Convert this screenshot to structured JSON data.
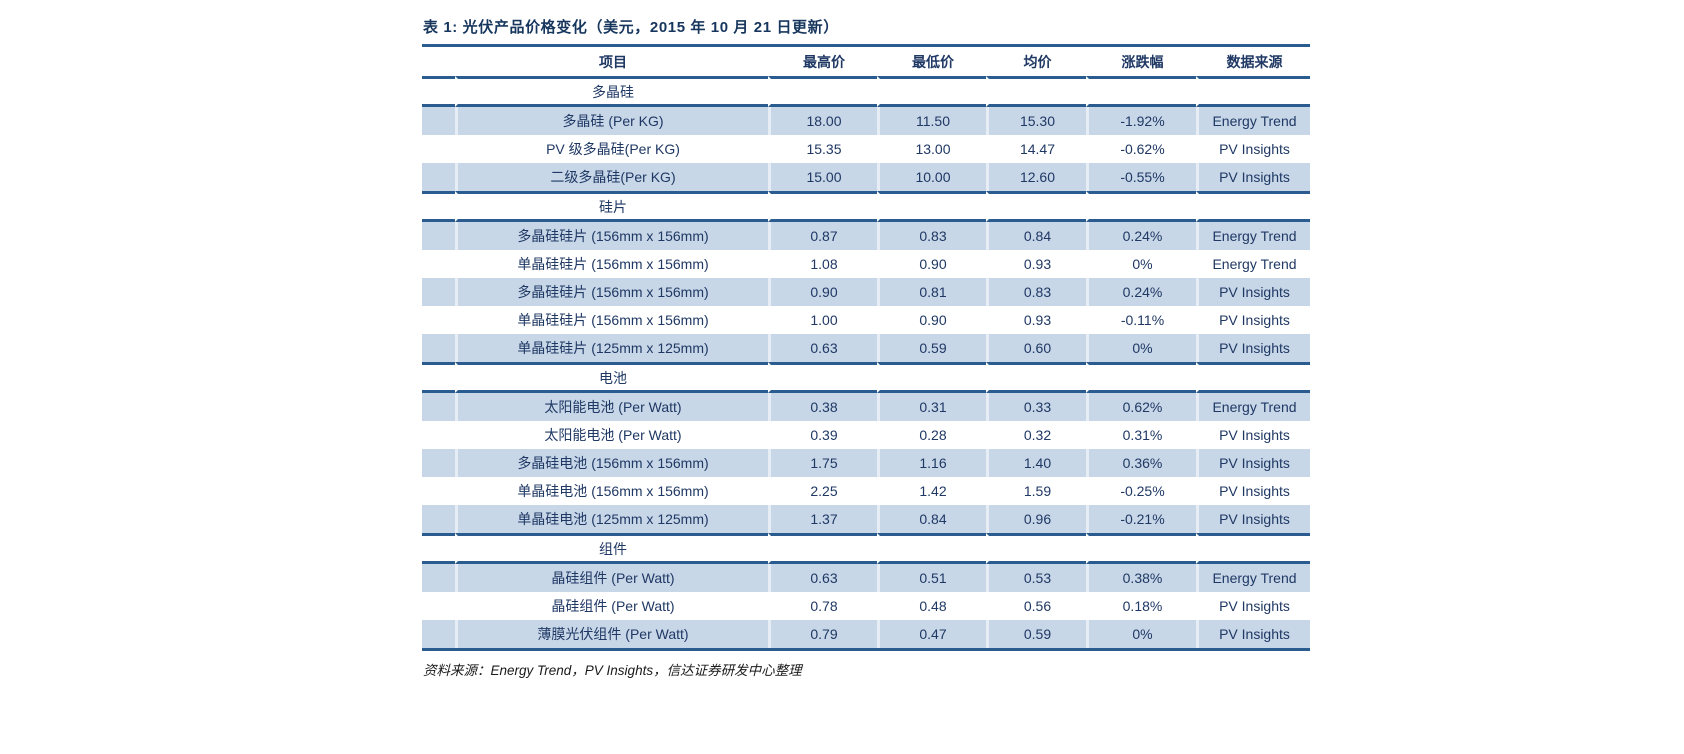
{
  "table": {
    "title": "表 1:  光伏产品价格变化（美元，2015 年 10 月 21 日更新）",
    "columns": [
      "项目",
      "最高价",
      "最低价",
      "均价",
      "涨跌幅",
      "数据来源"
    ],
    "sections": [
      {
        "name": "多晶硅",
        "rows": [
          [
            "多晶硅 (Per KG)",
            "18.00",
            "11.50",
            "15.30",
            "-1.92%",
            "Energy Trend"
          ],
          [
            "PV 级多晶硅(Per KG)",
            "15.35",
            "13.00",
            "14.47",
            "-0.62%",
            "PV Insights"
          ],
          [
            "二级多晶硅(Per KG)",
            "15.00",
            "10.00",
            "12.60",
            "-0.55%",
            "PV Insights"
          ]
        ]
      },
      {
        "name": "硅片",
        "rows": [
          [
            "多晶硅硅片 (156mm x 156mm)",
            "0.87",
            "0.83",
            "0.84",
            "0.24%",
            "Energy Trend"
          ],
          [
            "单晶硅硅片 (156mm x 156mm)",
            "1.08",
            "0.90",
            "0.93",
            "0%",
            "Energy Trend"
          ],
          [
            "多晶硅硅片 (156mm x 156mm)",
            "0.90",
            "0.81",
            "0.83",
            "0.24%",
            "PV Insights"
          ],
          [
            "单晶硅硅片 (156mm x 156mm)",
            "1.00",
            "0.90",
            "0.93",
            "-0.11%",
            "PV Insights"
          ],
          [
            "单晶硅硅片 (125mm x 125mm)",
            "0.63",
            "0.59",
            "0.60",
            "0%",
            "PV Insights"
          ]
        ]
      },
      {
        "name": "电池",
        "rows": [
          [
            "太阳能电池 (Per Watt)",
            "0.38",
            "0.31",
            "0.33",
            "0.62%",
            "Energy Trend"
          ],
          [
            "太阳能电池 (Per Watt)",
            "0.39",
            "0.28",
            "0.32",
            "0.31%",
            "PV Insights"
          ],
          [
            "多晶硅电池 (156mm x 156mm)",
            "1.75",
            "1.16",
            "1.40",
            "0.36%",
            "PV Insights"
          ],
          [
            "单晶硅电池 (156mm x 156mm)",
            "2.25",
            "1.42",
            "1.59",
            "-0.25%",
            "PV Insights"
          ],
          [
            "单晶硅电池 (125mm x 125mm)",
            "1.37",
            "0.84",
            "0.96",
            "-0.21%",
            "PV Insights"
          ]
        ]
      },
      {
        "name": "组件",
        "rows": [
          [
            "晶硅组件 (Per Watt)",
            "0.63",
            "0.51",
            "0.53",
            "0.38%",
            "Energy Trend"
          ],
          [
            "晶硅组件 (Per Watt)",
            "0.78",
            "0.48",
            "0.56",
            "0.18%",
            "PV Insights"
          ],
          [
            "薄膜光伏组件 (Per Watt)",
            "0.79",
            "0.47",
            "0.59",
            "0%",
            "PV Insights"
          ]
        ]
      }
    ],
    "footer": "资料来源：Energy Trend，PV Insights，信达证券研发中心整理",
    "colors": {
      "accent_line": "#2B5C8F",
      "text": "#1F3864",
      "row_shade": "#C7D7E8"
    }
  }
}
